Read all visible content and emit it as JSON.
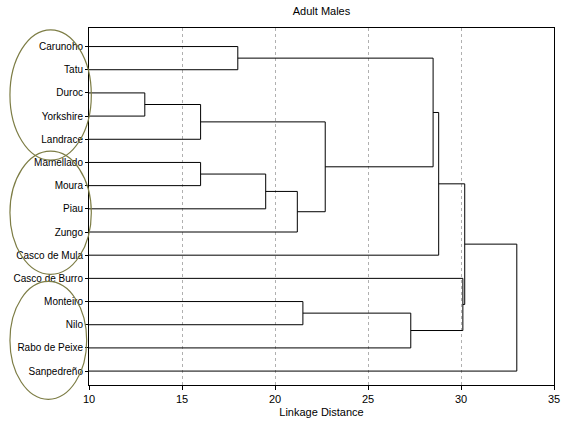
{
  "chart_data": {
    "type": "dendrogram",
    "title": "Adult Males",
    "x_label": "Linkage Distance",
    "xlim": [
      10,
      35
    ],
    "xticks": [
      10,
      15,
      20,
      25,
      30,
      35
    ],
    "grid": true,
    "color": "#000000",
    "tree": {
      "height": 33,
      "children": [
        {
          "height": 30.2,
          "children": [
            {
              "height": 28.8,
              "children": [
                {
                  "height": 28.5,
                  "children": [
                    {
                      "height": 18,
                      "children": [
                        "Carunoho",
                        "Tatu"
                      ]
                    },
                    {
                      "height": 22.7,
                      "children": [
                        {
                          "height": 16,
                          "children": [
                            {
                              "height": 13,
                              "children": [
                                "Duroc",
                                "Yorkshire"
                              ]
                            },
                            "Landrace"
                          ]
                        },
                        {
                          "height": 21.2,
                          "children": [
                            {
                              "height": 19.5,
                              "children": [
                                {
                                  "height": 16,
                                  "children": [
                                    "Mamellado",
                                    "Moura"
                                  ]
                                },
                                "Piau"
                              ]
                            },
                            "Zungo"
                          ]
                        }
                      ]
                    }
                  ]
                },
                "Casco de Mula"
              ]
            },
            {
              "height": 30.1,
              "children": [
                "Casco de Burro",
                {
                  "height": 27.3,
                  "children": [
                    {
                      "height": 21.5,
                      "children": [
                        "Monteiro",
                        "Nilo"
                      ]
                    },
                    "Rabo de Peixe"
                  ]
                }
              ]
            }
          ]
        },
        "Sanpedreño"
      ]
    }
  }
}
